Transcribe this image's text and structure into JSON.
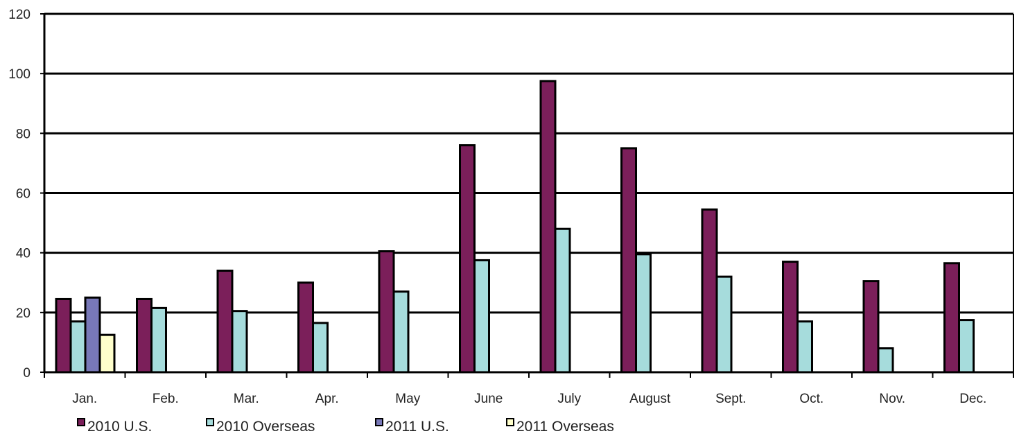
{
  "chart_data": {
    "type": "bar",
    "title": "",
    "xlabel": "",
    "ylabel": "",
    "ylim": [
      0,
      120
    ],
    "yticks": [
      0,
      20,
      40,
      60,
      80,
      100,
      120
    ],
    "grid": "horizontal",
    "legend_position": "bottom",
    "categories": [
      "Jan.",
      "Feb.",
      "Mar.",
      "Apr.",
      "May",
      "June",
      "July",
      "August",
      "Sept.",
      "Oct.",
      "Nov.",
      "Dec."
    ],
    "series": [
      {
        "name": "2010 U.S.",
        "color": "#7B1F5A",
        "values": [
          24.5,
          24.5,
          34,
          30,
          40.5,
          76,
          97.5,
          75,
          54.5,
          37,
          30.5,
          36.5
        ]
      },
      {
        "name": "2010 Overseas",
        "color": "#A6DCDC",
        "values": [
          17,
          21.5,
          20.5,
          16.5,
          27,
          37.5,
          48,
          39.5,
          32,
          17,
          8,
          17.5
        ]
      },
      {
        "name": "2011 U.S.",
        "color": "#7878B8",
        "values": [
          25,
          null,
          null,
          null,
          null,
          null,
          null,
          null,
          null,
          null,
          null,
          null
        ]
      },
      {
        "name": "2011 Overseas",
        "color": "#FFFFCC",
        "values": [
          12.5,
          null,
          null,
          null,
          null,
          null,
          null,
          null,
          null,
          null,
          null,
          null
        ]
      }
    ]
  }
}
